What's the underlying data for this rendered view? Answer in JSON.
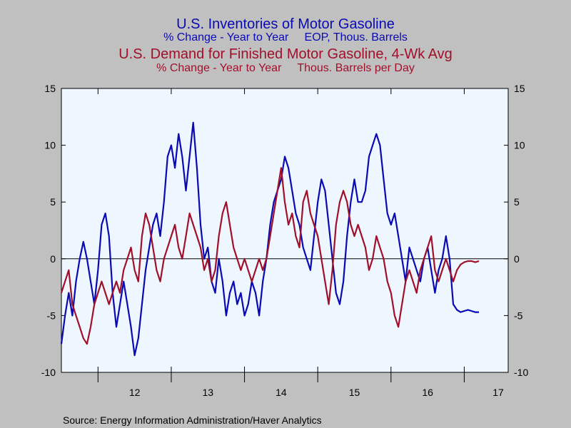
{
  "chart_data": {
    "type": "line",
    "titles": [
      {
        "text": "U.S. Inventories of Motor Gasoline",
        "color": "#0a0ab4"
      },
      {
        "text": "% Change - Year to Year     EOP, Thous. Barrels",
        "color": "#0a0ab4"
      },
      {
        "text": "U.S. Demand for Finished Motor Gasoline, 4-Wk Avg",
        "color": "#a0102a"
      },
      {
        "text": "% Change - Year to Year     Thous. Barrels per Day",
        "color": "#a0102a"
      }
    ],
    "source": "Source:  Energy Information Administration/Haver Analytics",
    "ylim": [
      -10,
      15
    ],
    "y_ticks": [
      -10,
      -5,
      0,
      5,
      10,
      15
    ],
    "y_tick_labels": [
      "-10",
      "-5",
      "0",
      "5",
      "10",
      "15"
    ],
    "xlim": [
      2011.5,
      2017.6
    ],
    "x_ticks": [
      2012,
      2013,
      2014,
      2015,
      2016,
      2017
    ],
    "x_tick_labels": [
      "12",
      "13",
      "14",
      "15",
      "16",
      "17"
    ],
    "grid": false,
    "zero_line": true,
    "colors": {
      "inventories": "#0a0ab4",
      "demand": "#a0102a",
      "plot_bg": "#eef6ff",
      "outer_bg": "#c0c0c0"
    },
    "series": [
      {
        "key": "inventories",
        "x": [
          2011.5,
          2011.55,
          2011.6,
          2011.65,
          2011.7,
          2011.75,
          2011.8,
          2011.85,
          2011.9,
          2011.95,
          2012.0,
          2012.05,
          2012.1,
          2012.15,
          2012.2,
          2012.25,
          2012.3,
          2012.35,
          2012.4,
          2012.45,
          2012.5,
          2012.55,
          2012.6,
          2012.65,
          2012.7,
          2012.75,
          2012.8,
          2012.85,
          2012.9,
          2012.95,
          2013.0,
          2013.05,
          2013.1,
          2013.15,
          2013.2,
          2013.25,
          2013.3,
          2013.35,
          2013.4,
          2013.45,
          2013.5,
          2013.55,
          2013.6,
          2013.65,
          2013.7,
          2013.75,
          2013.8,
          2013.85,
          2013.9,
          2013.95,
          2014.0,
          2014.05,
          2014.1,
          2014.15,
          2014.2,
          2014.25,
          2014.3,
          2014.35,
          2014.4,
          2014.45,
          2014.5,
          2014.55,
          2014.6,
          2014.65,
          2014.7,
          2014.75,
          2014.8,
          2014.85,
          2014.9,
          2014.95,
          2015.0,
          2015.05,
          2015.1,
          2015.15,
          2015.2,
          2015.25,
          2015.3,
          2015.35,
          2015.4,
          2015.45,
          2015.5,
          2015.55,
          2015.6,
          2015.65,
          2015.7,
          2015.75,
          2015.8,
          2015.85,
          2015.9,
          2015.95,
          2016.0,
          2016.05,
          2016.1,
          2016.15,
          2016.2,
          2016.25,
          2016.3,
          2016.35,
          2016.4,
          2016.45,
          2016.5,
          2016.55,
          2016.6,
          2016.65,
          2016.7,
          2016.75,
          2016.8,
          2016.85,
          2016.9,
          2016.95,
          2017.0,
          2017.05,
          2017.1,
          2017.15,
          2017.2
        ],
        "values": [
          -7.5,
          -5,
          -3,
          -5,
          -2,
          0,
          1.5,
          0,
          -2,
          -4,
          -1,
          3,
          4,
          2,
          -3,
          -6,
          -4,
          -2,
          -4,
          -6,
          -8.5,
          -7,
          -4,
          -1,
          1,
          3,
          4,
          2,
          5,
          9,
          10,
          8,
          11,
          9,
          6,
          9,
          12,
          8,
          3,
          0,
          1,
          -2,
          -3,
          0,
          -2,
          -5,
          -3,
          -2,
          -4,
          -3,
          -5,
          -4,
          -2,
          -3,
          -5,
          -2,
          0,
          3,
          5,
          6,
          7,
          9,
          8,
          6,
          4,
          3,
          1,
          0,
          -1,
          2,
          5,
          7,
          6,
          3,
          0,
          -3,
          -4,
          -2,
          2,
          5,
          7,
          5,
          5,
          6,
          9,
          10,
          11,
          10,
          7,
          4,
          3,
          4,
          2,
          0,
          -2,
          1,
          0,
          -1,
          -2,
          0,
          1,
          -1,
          -3,
          -1,
          0,
          2,
          0,
          -4,
          -4.5,
          -4.7,
          -4.6,
          -4.5,
          -4.6,
          -4.7,
          -4.7
        ],
        "label_color": "#0a0ab4"
      },
      {
        "key": "demand",
        "x": [
          2011.5,
          2011.55,
          2011.6,
          2011.65,
          2011.7,
          2011.75,
          2011.8,
          2011.85,
          2011.9,
          2011.95,
          2012.0,
          2012.05,
          2012.1,
          2012.15,
          2012.2,
          2012.25,
          2012.3,
          2012.35,
          2012.4,
          2012.45,
          2012.5,
          2012.55,
          2012.6,
          2012.65,
          2012.7,
          2012.75,
          2012.8,
          2012.85,
          2012.9,
          2012.95,
          2013.0,
          2013.05,
          2013.1,
          2013.15,
          2013.2,
          2013.25,
          2013.3,
          2013.35,
          2013.4,
          2013.45,
          2013.5,
          2013.55,
          2013.6,
          2013.65,
          2013.7,
          2013.75,
          2013.8,
          2013.85,
          2013.9,
          2013.95,
          2014.0,
          2014.05,
          2014.1,
          2014.15,
          2014.2,
          2014.25,
          2014.3,
          2014.35,
          2014.4,
          2014.45,
          2014.5,
          2014.55,
          2014.6,
          2014.65,
          2014.7,
          2014.75,
          2014.8,
          2014.85,
          2014.9,
          2014.95,
          2015.0,
          2015.05,
          2015.1,
          2015.15,
          2015.2,
          2015.25,
          2015.3,
          2015.35,
          2015.4,
          2015.45,
          2015.5,
          2015.55,
          2015.6,
          2015.65,
          2015.7,
          2015.75,
          2015.8,
          2015.85,
          2015.9,
          2015.95,
          2016.0,
          2016.05,
          2016.1,
          2016.15,
          2016.2,
          2016.25,
          2016.3,
          2016.35,
          2016.4,
          2016.45,
          2016.5,
          2016.55,
          2016.6,
          2016.65,
          2016.7,
          2016.75,
          2016.8,
          2016.85,
          2016.9,
          2016.95,
          2017.0,
          2017.05,
          2017.1,
          2017.15,
          2017.2
        ],
        "values": [
          -3,
          -2,
          -1,
          -4,
          -5,
          -6,
          -7,
          -7.5,
          -6,
          -4,
          -3,
          -2,
          -3,
          -4,
          -3,
          -2,
          -3,
          -1,
          0,
          1,
          -1,
          -2,
          2,
          4,
          3,
          1,
          -1,
          -2,
          0,
          1,
          2,
          3,
          1,
          0,
          2,
          4,
          3,
          2,
          1,
          -1,
          0,
          -2,
          -1,
          2,
          4,
          5,
          3,
          1,
          0,
          -1,
          0,
          -1,
          -2,
          -1,
          0,
          -1,
          0,
          2,
          4,
          6,
          8,
          5,
          3,
          4,
          2,
          1,
          5,
          6,
          4,
          3,
          2,
          0,
          -2,
          -4,
          -1,
          3,
          5,
          6,
          5,
          3,
          2,
          3,
          2,
          1,
          -1,
          0,
          2,
          1,
          0,
          -2,
          -3,
          -5,
          -6,
          -4,
          -2,
          -1,
          -2,
          -3,
          -1,
          0,
          1,
          2,
          -1,
          -2,
          -1,
          0,
          -1,
          -2,
          -1,
          -0.5,
          -0.3,
          -0.2,
          -0.2,
          -0.3,
          -0.2
        ],
        "label_color": "#a0102a"
      }
    ]
  }
}
